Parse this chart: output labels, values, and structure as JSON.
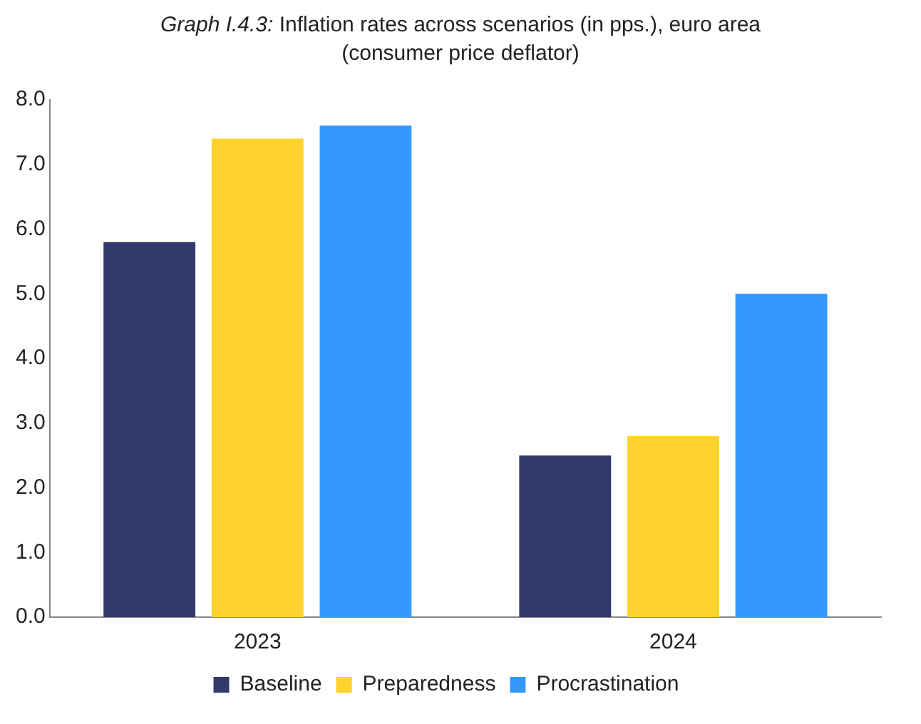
{
  "chart_data": {
    "type": "bar",
    "title": "Graph I.4.3: Inflation rates across scenarios (in pps.), euro area (consumer price deflator)",
    "categories": [
      "2023",
      "2024"
    ],
    "series": [
      {
        "name": "Baseline",
        "color": "#333a6b",
        "values": [
          5.8,
          2.5
        ]
      },
      {
        "name": "Preparedness",
        "color": "#ffd22e",
        "values": [
          7.4,
          2.8
        ]
      },
      {
        "name": "Procrastination",
        "color": "#3399ff",
        "values": [
          7.6,
          5.0
        ]
      }
    ],
    "ylim": [
      0,
      8
    ],
    "yticks": [
      {
        "value": 0,
        "label": "0.0"
      },
      {
        "value": 1,
        "label": "1.0"
      },
      {
        "value": 2,
        "label": "2.0"
      },
      {
        "value": 3,
        "label": "3.0"
      },
      {
        "value": 4,
        "label": "4.0"
      },
      {
        "value": 5,
        "label": "5.0"
      },
      {
        "value": 6,
        "label": "6.0"
      },
      {
        "value": 7,
        "label": "7.0"
      },
      {
        "value": 8,
        "label": "8.0"
      }
    ],
    "grid": false,
    "legend": "bottom"
  }
}
